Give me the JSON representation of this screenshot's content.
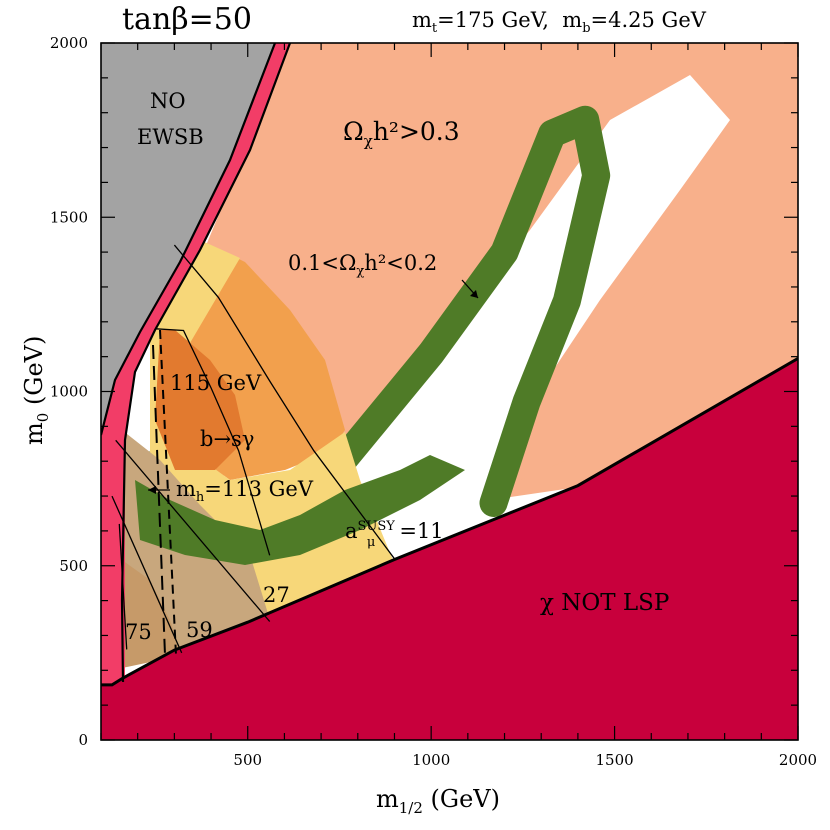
{
  "header": {
    "tanbeta": "tanβ=50",
    "mt": "175 GeV",
    "mb": "4.25 GeV"
  },
  "colors": {
    "no_ewsb": "#a3a3a3",
    "stau_lsp": "#c8003c",
    "chargino_band": "#f23d67",
    "relic_over": "#f8b08b",
    "relic_wmap": "#4f7b27",
    "higgs": "#f2a04d",
    "higgs_113": "#f7d779",
    "bsg": "#e27a2f",
    "gminus2": "#c8a77d",
    "gminus2_27": "#c69a69"
  },
  "chart_data": {
    "type": "area",
    "x_label": "m_{1/2} (GeV)",
    "y_label": "m_0 (GeV)",
    "x_range": [
      100,
      2000
    ],
    "y_range": [
      0,
      2000
    ],
    "x_ticks": [
      500,
      1000,
      1500,
      2000
    ],
    "y_ticks": [
      0,
      500,
      1000,
      1500,
      2000
    ],
    "region_labels": {
      "no_ewsb": [
        "NO",
        "EWSB"
      ],
      "overdense": "Ω_χh²>0.3",
      "wmap": "0.1<Ω_χh²<0.2",
      "higgs_115": "115 GeV",
      "bsg": "b→sγ",
      "higgs_113": "m_h=113 GeV",
      "g2_11": "a_μ^SUSY=11",
      "g2_27": "27",
      "g2_59": "59",
      "g2_75": "75",
      "not_lsp": "χ NOT LSP"
    },
    "lsp_boundary": [
      [
        100,
        158
      ],
      [
        130,
        158
      ],
      [
        160,
        178
      ],
      [
        300,
        258
      ],
      [
        500,
        338
      ],
      [
        900,
        518
      ],
      [
        1400,
        730
      ],
      [
        2000,
        1095
      ]
    ],
    "wmap_band_center": [
      [
        260,
        800
      ],
      [
        400,
        660
      ],
      [
        550,
        625
      ],
      [
        750,
        790
      ],
      [
        1000,
        1110
      ],
      [
        1200,
        1400
      ],
      [
        1330,
        1740
      ],
      [
        1420,
        1780
      ],
      [
        1450,
        1620
      ],
      [
        1370,
        1260
      ],
      [
        1260,
        970
      ],
      [
        1170,
        680
      ]
    ],
    "higgs_113_contour": [
      [
        250,
        1180
      ],
      [
        325,
        1175
      ],
      [
        400,
        1010
      ],
      [
        475,
        830
      ],
      [
        560,
        530
      ]
    ],
    "higgs_115_contour": [
      [
        300,
        1420
      ],
      [
        420,
        1270
      ],
      [
        560,
        1030
      ],
      [
        680,
        830
      ],
      [
        900,
        520
      ]
    ],
    "gminus2_contours": {
      "11": [
        [
          180,
          1100
        ],
        [
          900,
          520
        ]
      ],
      "27": [
        [
          140,
          860
        ],
        [
          560,
          340
        ]
      ],
      "59": [
        [
          130,
          700
        ],
        [
          320,
          250
        ]
      ],
      "75": [
        [
          150,
          620
        ],
        [
          170,
          260
        ]
      ]
    }
  }
}
